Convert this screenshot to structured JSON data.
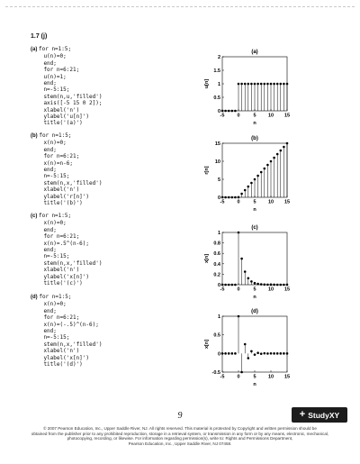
{
  "heading": "1.7 (j)",
  "code_blocks": [
    {
      "tag": "(a)",
      "lines": [
        "for n=1:5;",
        "u(n)=0;",
        "end;",
        "for n=6:21;",
        "u(n)=1;",
        "end;",
        "n=-5:15;",
        "stem(n,u,'filled')",
        "axis([-5 15 0 2]);",
        "xlabel('n')",
        "ylabel('u[n]')",
        "title('(a)')"
      ]
    },
    {
      "tag": "(b)",
      "lines": [
        "for n=1:5;",
        "x(n)=0;",
        "end;",
        "for n=6:21;",
        "x(n)=n-6;",
        "end;",
        "n=-5:15;",
        "stem(n,x,'filled')",
        "xlabel('n')",
        "ylabel('r[n]')",
        "title('(b)')"
      ]
    },
    {
      "tag": "(c)",
      "lines": [
        "for n=1:5;",
        "x(n)=0;",
        "end;",
        "for n=6:21;",
        "x(n)=.5^(n-6);",
        "end;",
        "n=-5:15;",
        "stem(n,x,'filled')",
        "xlabel('n')",
        "ylabel('x[n]')",
        "title('(c)')"
      ]
    },
    {
      "tag": "(d)",
      "lines": [
        "for n=1:5;",
        "x(n)=0;",
        "end;",
        "for n=6:21;",
        "x(n)=(-.5)^(n-6);",
        "end;",
        "n=-5:15;",
        "stem(n,x,'filled')",
        "xlabel('n')",
        "ylabel('x[n]')",
        "title('(d)')"
      ]
    }
  ],
  "chart_data": [
    {
      "type": "scatter",
      "style": "stem",
      "title": "(a)",
      "xlabel": "n",
      "ylabel": "u[n]",
      "xlim": [
        -5,
        15
      ],
      "ylim": [
        0,
        2
      ],
      "xticks": [
        -5,
        0,
        5,
        10,
        15
      ],
      "yticks": [
        0,
        0.5,
        1,
        1.5,
        2
      ],
      "x": [
        -5,
        -4,
        -3,
        -2,
        -1,
        0,
        1,
        2,
        3,
        4,
        5,
        6,
        7,
        8,
        9,
        10,
        11,
        12,
        13,
        14,
        15
      ],
      "y": [
        0,
        0,
        0,
        0,
        0,
        1,
        1,
        1,
        1,
        1,
        1,
        1,
        1,
        1,
        1,
        1,
        1,
        1,
        1,
        1,
        1
      ]
    },
    {
      "type": "scatter",
      "style": "stem",
      "title": "(b)",
      "xlabel": "n",
      "ylabel": "r[n]",
      "xlim": [
        -5,
        15
      ],
      "ylim": [
        0,
        15
      ],
      "xticks": [
        -5,
        0,
        5,
        10,
        15
      ],
      "yticks": [
        0,
        5,
        10,
        15
      ],
      "x": [
        -5,
        -4,
        -3,
        -2,
        -1,
        0,
        1,
        2,
        3,
        4,
        5,
        6,
        7,
        8,
        9,
        10,
        11,
        12,
        13,
        14,
        15
      ],
      "y": [
        0,
        0,
        0,
        0,
        0,
        0,
        1,
        2,
        3,
        4,
        5,
        6,
        7,
        8,
        9,
        10,
        11,
        12,
        13,
        14,
        15
      ]
    },
    {
      "type": "scatter",
      "style": "stem",
      "title": "(c)",
      "xlabel": "n",
      "ylabel": "x[n]",
      "xlim": [
        -5,
        15
      ],
      "ylim": [
        0,
        1
      ],
      "xticks": [
        -5,
        0,
        5,
        10,
        15
      ],
      "yticks": [
        0,
        0.2,
        0.4,
        0.6,
        0.8,
        1
      ],
      "x": [
        -5,
        -4,
        -3,
        -2,
        -1,
        0,
        1,
        2,
        3,
        4,
        5,
        6,
        7,
        8,
        9,
        10,
        11,
        12,
        13,
        14,
        15
      ],
      "y": [
        0,
        0,
        0,
        0,
        0,
        1,
        0.5,
        0.25,
        0.125,
        0.0625,
        0.03125,
        0.0156,
        0.0078,
        0.0039,
        0.002,
        0.001,
        0.0005,
        0.0002,
        0.0001,
        0.0001,
        0
      ]
    },
    {
      "type": "scatter",
      "style": "stem",
      "title": "(d)",
      "xlabel": "n",
      "ylabel": "x[n]",
      "xlim": [
        -5,
        15
      ],
      "ylim": [
        -0.5,
        1
      ],
      "xticks": [
        -5,
        0,
        5,
        10,
        15
      ],
      "yticks": [
        -0.5,
        0,
        0.5,
        1
      ],
      "x": [
        -5,
        -4,
        -3,
        -2,
        -1,
        0,
        1,
        2,
        3,
        4,
        5,
        6,
        7,
        8,
        9,
        10,
        11,
        12,
        13,
        14,
        15
      ],
      "y": [
        0,
        0,
        0,
        0,
        0,
        1,
        -0.5,
        0.25,
        -0.125,
        0.0625,
        -0.03125,
        0.0156,
        -0.0078,
        0.0039,
        -0.002,
        0.001,
        -0.0005,
        0.0002,
        -0.0001,
        0.0001,
        0
      ]
    }
  ],
  "page_number": "9",
  "brand": {
    "plus": "+",
    "name": "StudyXY"
  },
  "footer": [
    "© 2007 Pearson Education, Inc., Upper Saddle River, NJ. All rights reserved. This material is protected by Copyright and written permission should be",
    "obtained from the publisher prior to any prohibited reproduction, storage in a retrieval system, or transmission in any form or by any means, electronic, mechanical,",
    "photocopying, recording, or likewise. For information regarding permission(s), write to: Rights and Permissions Department,",
    "Pearson Education, Inc., Upper Saddle River, NJ 07458."
  ]
}
